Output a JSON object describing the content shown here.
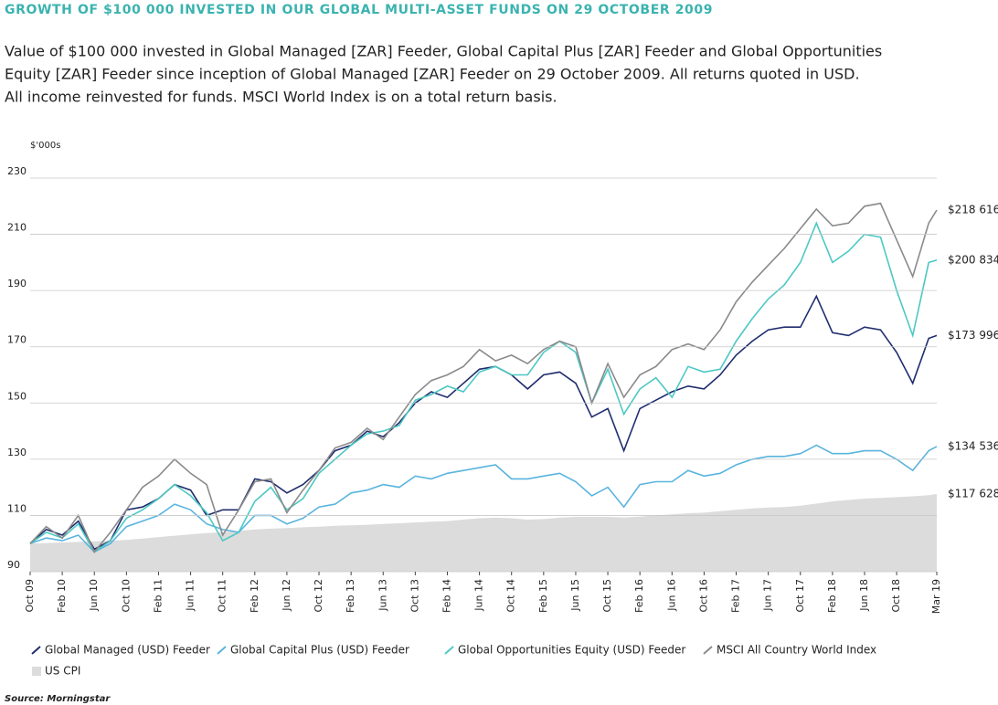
{
  "chart_data": {
    "type": "line",
    "title": "GROWTH OF $100 000 INVESTED IN OUR GLOBAL MULTI-ASSET FUNDS ON 29 OCTOBER 2009",
    "subtitle": [
      "Value of $100 000 invested in Global Managed [ZAR] Feeder, Global Capital Plus [ZAR] Feeder and Global Opportunities",
      "Equity [ZAR] Feeder since inception of Global Managed [ZAR] Feeder on 29 October 2009. All returns quoted in USD.",
      "All income reinvested for funds. MSCI World Index is on a total return basis."
    ],
    "y_label": "$'000s",
    "source": "Source: Morningstar",
    "x": [
      "2009-10",
      "2009-12",
      "2010-02",
      "2010-04",
      "2010-06",
      "2010-08",
      "2010-10",
      "2010-12",
      "2011-02",
      "2011-04",
      "2011-06",
      "2011-08",
      "2011-10",
      "2011-12",
      "2012-02",
      "2012-04",
      "2012-06",
      "2012-08",
      "2012-10",
      "2012-12",
      "2013-02",
      "2013-04",
      "2013-06",
      "2013-08",
      "2013-10",
      "2013-12",
      "2014-02",
      "2014-04",
      "2014-06",
      "2014-08",
      "2014-10",
      "2014-12",
      "2015-02",
      "2015-04",
      "2015-06",
      "2015-08",
      "2015-10",
      "2015-12",
      "2016-02",
      "2016-04",
      "2016-06",
      "2016-08",
      "2016-10",
      "2016-12",
      "2017-02",
      "2017-04",
      "2017-06",
      "2017-08",
      "2017-10",
      "2017-12",
      "2018-02",
      "2018-04",
      "2018-06",
      "2018-08",
      "2018-10",
      "2018-12",
      "2019-02",
      "2019-03"
    ],
    "xticks": [
      {
        "value": "2009-10",
        "label": "Oct 09"
      },
      {
        "value": "2010-02",
        "label": "Feb 10"
      },
      {
        "value": "2010-06",
        "label": "Jun 10"
      },
      {
        "value": "2010-10",
        "label": "Oct 10"
      },
      {
        "value": "2011-02",
        "label": "Feb 11"
      },
      {
        "value": "2011-06",
        "label": "Jun 11"
      },
      {
        "value": "2011-10",
        "label": "Oct 11"
      },
      {
        "value": "2012-02",
        "label": "Feb 12"
      },
      {
        "value": "2012-06",
        "label": "Jun 12"
      },
      {
        "value": "2012-10",
        "label": "Oct 12"
      },
      {
        "value": "2013-02",
        "label": "Feb 13"
      },
      {
        "value": "2013-06",
        "label": "Jun 13"
      },
      {
        "value": "2013-10",
        "label": "Oct 13"
      },
      {
        "value": "2014-02",
        "label": "Feb 14"
      },
      {
        "value": "2014-06",
        "label": "Jun 14"
      },
      {
        "value": "2014-10",
        "label": "Oct 14"
      },
      {
        "value": "2015-02",
        "label": "Feb 15"
      },
      {
        "value": "2015-06",
        "label": "Jun 15"
      },
      {
        "value": "2015-10",
        "label": "Oct 15"
      },
      {
        "value": "2016-02",
        "label": "Feb 16"
      },
      {
        "value": "2016-06",
        "label": "Jun 16"
      },
      {
        "value": "2016-10",
        "label": "Oct 16"
      },
      {
        "value": "2017-02",
        "label": "Feb 17"
      },
      {
        "value": "2017-06",
        "label": "Jun 17"
      },
      {
        "value": "2017-10",
        "label": "Oct 17"
      },
      {
        "value": "2018-02",
        "label": "Feb 18"
      },
      {
        "value": "2018-06",
        "label": "Jun 18"
      },
      {
        "value": "2018-10",
        "label": "Oct 18"
      },
      {
        "value": "2019-03",
        "label": "Mar 19"
      }
    ],
    "ylim": [
      90,
      230
    ],
    "yticks": [
      90,
      110,
      130,
      150,
      170,
      190,
      210,
      230
    ],
    "grid": true,
    "series": [
      {
        "name": "Global Managed (USD) Feeder",
        "color": "#1f2d6e",
        "end_label": "$173 996",
        "values": [
          100,
          105,
          103,
          108,
          98,
          101,
          112,
          113,
          116,
          121,
          119,
          110,
          112,
          112,
          123,
          122,
          118,
          121,
          126,
          133,
          135,
          140,
          138,
          143,
          150,
          154,
          152,
          157,
          162,
          163,
          160,
          155,
          160,
          161,
          157,
          145,
          148,
          133,
          148,
          151,
          154,
          156,
          155,
          160,
          167,
          172,
          176,
          177,
          177,
          188,
          175,
          174,
          177,
          176,
          168,
          157,
          173,
          173.996
        ]
      },
      {
        "name": "Global Capital Plus (USD) Feeder",
        "color": "#5ab4de",
        "end_label": "$134 536",
        "values": [
          100,
          102,
          101,
          103,
          97,
          100,
          106,
          108,
          110,
          114,
          112,
          107,
          105,
          104,
          110,
          110,
          107,
          109,
          113,
          114,
          118,
          119,
          121,
          120,
          124,
          123,
          125,
          126,
          127,
          128,
          123,
          123,
          124,
          125,
          122,
          117,
          120,
          113,
          121,
          122,
          122,
          126,
          124,
          125,
          128,
          130,
          131,
          131,
          132,
          135,
          132,
          132,
          133,
          133,
          130,
          126,
          133,
          134.536
        ]
      },
      {
        "name": "Global Opportunities Equity (USD) Feeder",
        "color": "#4cc8c3",
        "end_label": "$200 834",
        "values": [
          100,
          104,
          102,
          107,
          97,
          101,
          109,
          112,
          116,
          121,
          117,
          111,
          101,
          104,
          115,
          120,
          112,
          116,
          125,
          130,
          135,
          139,
          140,
          142,
          151,
          153,
          156,
          154,
          161,
          163,
          160,
          160,
          168,
          172,
          168,
          150,
          162,
          146,
          155,
          159,
          152,
          163,
          161,
          162,
          172,
          180,
          187,
          192,
          200,
          214,
          200,
          204,
          210,
          209,
          190,
          174,
          200,
          200.834
        ]
      },
      {
        "name": "MSCI All Country World Index",
        "color": "#8a8a8a",
        "end_label": "$218 616",
        "values": [
          100,
          106,
          102,
          110,
          97,
          104,
          112,
          120,
          124,
          130,
          125,
          121,
          103,
          112,
          122,
          123,
          111,
          119,
          126,
          134,
          136,
          141,
          137,
          145,
          153,
          158,
          160,
          163,
          169,
          165,
          167,
          164,
          169,
          172,
          170,
          150,
          164,
          152,
          160,
          163,
          169,
          171,
          169,
          176,
          186,
          193,
          199,
          205,
          212,
          219,
          213,
          214,
          220,
          221,
          208,
          195,
          214,
          218.616
        ]
      },
      {
        "name": "US CPI",
        "color": "#dcdcdc",
        "style": "area",
        "end_label": "$117 628",
        "values": [
          100,
          100.2,
          100.4,
          100.6,
          100.8,
          101,
          101.3,
          101.8,
          102.3,
          102.8,
          103.3,
          103.7,
          104,
          104.5,
          105,
          105.3,
          105.5,
          105.8,
          106,
          106.3,
          106.5,
          106.7,
          107,
          107.2,
          107.5,
          107.8,
          108,
          108.5,
          109,
          109.2,
          109,
          108.5,
          108.7,
          109.2,
          109.5,
          109.5,
          109.5,
          109.3,
          109.6,
          110,
          110.4,
          110.8,
          111,
          111.5,
          112,
          112.5,
          112.8,
          113,
          113.5,
          114.2,
          115,
          115.5,
          116,
          116.2,
          116.5,
          116.8,
          117.2,
          117.628
        ]
      }
    ]
  }
}
